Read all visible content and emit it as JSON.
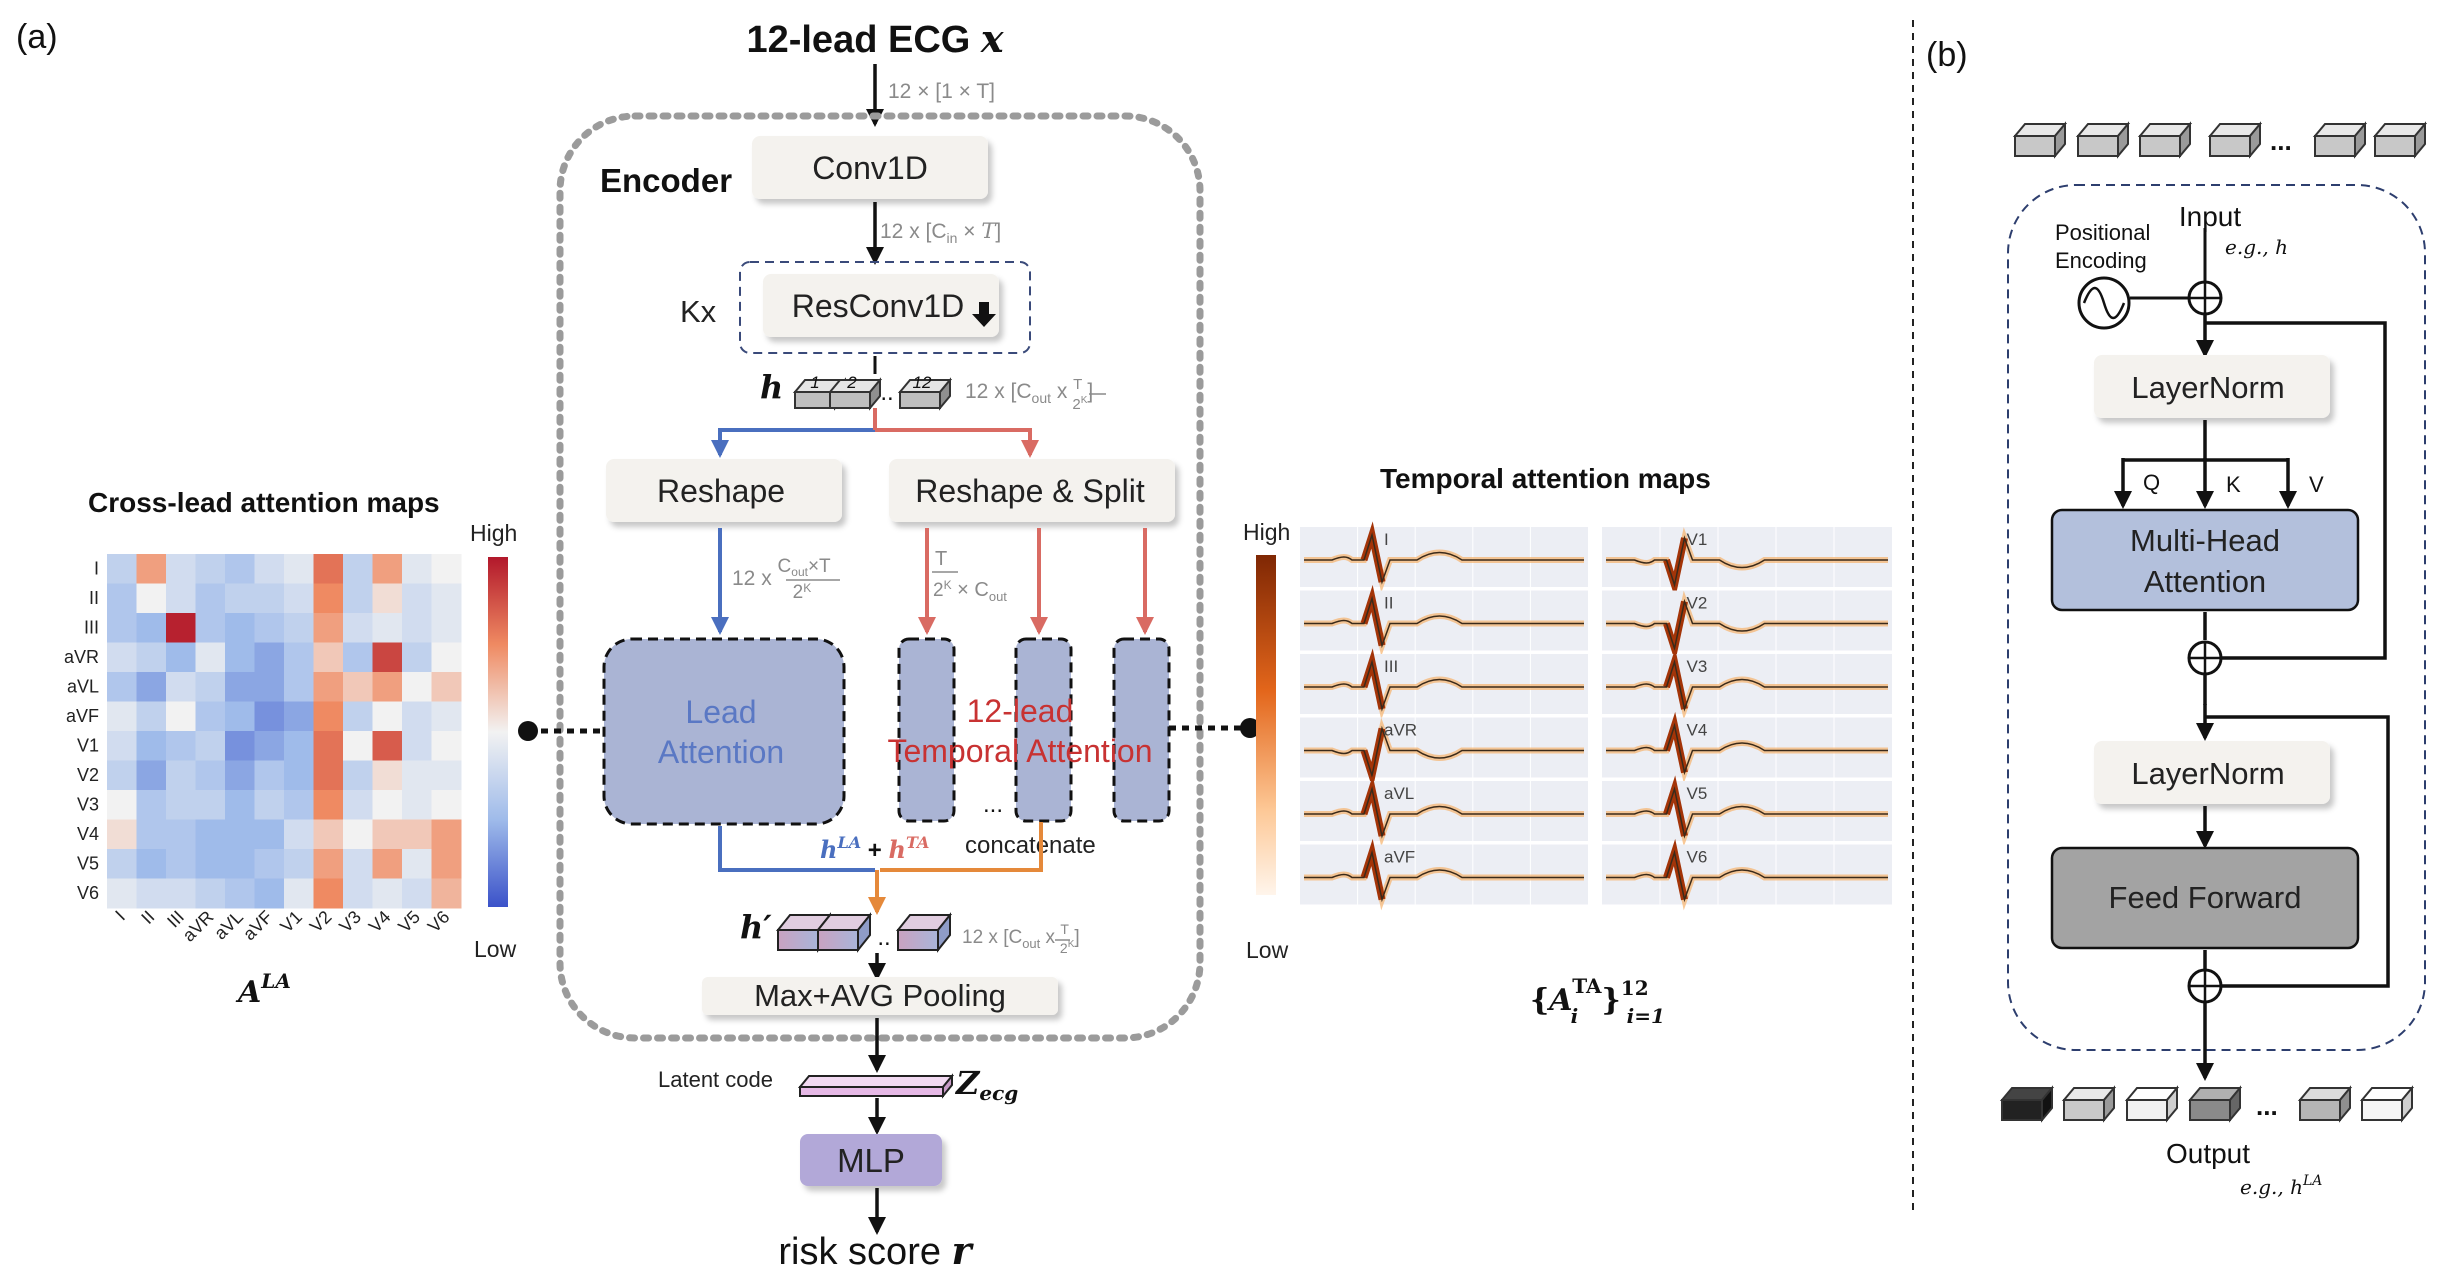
{
  "panel_labels": {
    "a": "(a)",
    "b": "(b)"
  },
  "top": {
    "title": "12-lead ECG",
    "title_var": "x",
    "input_shape": "12 × [1 × T]"
  },
  "encoder": {
    "label": "Encoder",
    "conv1d": "Conv1D",
    "conv_shape": "12 x [Cin × T]",
    "kx": "Kx",
    "resconv": "ResConv1D",
    "h_label": "h",
    "h_tokens": [
      "1",
      "2",
      "..",
      "12"
    ],
    "h_shape": "12 x [Cout x T/2K]",
    "reshape": "Reshape",
    "reshape_split": "Reshape & Split",
    "reshape_shape": "12 x Cout×T/2K",
    "split_shape": "T/2K × Cout",
    "lead_attention": [
      "Lead",
      "Attention"
    ],
    "temporal_attention": [
      "12-lead",
      "Temporal Attention"
    ],
    "dots": "...",
    "concatenate": "concatenate",
    "sum_la": "hLA",
    "sum_plus": "+",
    "sum_ta": "hTA",
    "hprime": "h′",
    "hprime_shape": "12 x [Cout x T/2K]",
    "pooling": "Max+AVG Pooling"
  },
  "bottom": {
    "latent_label": "Latent code",
    "z": "Zecg",
    "mlp": "MLP",
    "risk": "risk score",
    "risk_var": "r"
  },
  "cross_lead": {
    "title": "Cross-lead attention maps",
    "high": "High",
    "low": "Low",
    "caption": "ALA",
    "leads": [
      "I",
      "II",
      "III",
      "aVR",
      "aVL",
      "aVF",
      "V1",
      "V2",
      "V3",
      "V4",
      "V5",
      "V6"
    ],
    "matrix": [
      [
        0.35,
        0.7,
        0.4,
        0.35,
        0.3,
        0.4,
        0.45,
        0.8,
        0.35,
        0.7,
        0.45,
        0.5
      ],
      [
        0.3,
        0.5,
        0.4,
        0.3,
        0.35,
        0.35,
        0.4,
        0.75,
        0.35,
        0.55,
        0.4,
        0.45
      ],
      [
        0.3,
        0.25,
        0.98,
        0.3,
        0.25,
        0.3,
        0.35,
        0.7,
        0.4,
        0.45,
        0.4,
        0.45
      ],
      [
        0.4,
        0.35,
        0.25,
        0.45,
        0.25,
        0.2,
        0.3,
        0.6,
        0.3,
        0.9,
        0.35,
        0.5
      ],
      [
        0.3,
        0.2,
        0.4,
        0.35,
        0.2,
        0.2,
        0.3,
        0.7,
        0.6,
        0.7,
        0.5,
        0.6
      ],
      [
        0.45,
        0.35,
        0.5,
        0.3,
        0.25,
        0.15,
        0.2,
        0.75,
        0.35,
        0.5,
        0.4,
        0.45
      ],
      [
        0.4,
        0.25,
        0.3,
        0.35,
        0.15,
        0.2,
        0.25,
        0.8,
        0.5,
        0.85,
        0.4,
        0.5
      ],
      [
        0.35,
        0.2,
        0.35,
        0.3,
        0.2,
        0.3,
        0.25,
        0.8,
        0.35,
        0.55,
        0.45,
        0.45
      ],
      [
        0.5,
        0.3,
        0.35,
        0.35,
        0.25,
        0.35,
        0.3,
        0.75,
        0.4,
        0.5,
        0.45,
        0.5
      ],
      [
        0.55,
        0.3,
        0.3,
        0.25,
        0.25,
        0.25,
        0.4,
        0.6,
        0.5,
        0.6,
        0.6,
        0.7
      ],
      [
        0.35,
        0.25,
        0.3,
        0.25,
        0.25,
        0.3,
        0.35,
        0.7,
        0.4,
        0.7,
        0.45,
        0.7
      ],
      [
        0.45,
        0.4,
        0.4,
        0.35,
        0.3,
        0.25,
        0.45,
        0.75,
        0.4,
        0.45,
        0.4,
        0.65
      ]
    ]
  },
  "temporal": {
    "title": "Temporal attention maps",
    "high": "High",
    "low": "Low",
    "caption": "{ATAi}12i=1",
    "left_leads": [
      "I",
      "II",
      "III",
      "aVR",
      "aVL",
      "aVF"
    ],
    "right_leads": [
      "V1",
      "V2",
      "V3",
      "V4",
      "V5",
      "V6"
    ]
  },
  "transformer": {
    "tokens_top": "...",
    "pos_enc": [
      "Positional",
      "Encoding"
    ],
    "input": "Input",
    "input_eg": "e.g., h",
    "layernorm": "LayerNorm",
    "q": "Q",
    "k": "K",
    "v": "V",
    "mha": [
      "Multi-Head",
      "Attention"
    ],
    "feedforward": "Feed Forward",
    "tokens_bottom": "...",
    "output": "Output",
    "output_eg": "e.g., hLA"
  },
  "colors": {
    "blue_arrow": "#4a6fbf",
    "red_arrow": "#d96b63",
    "orange_arrow": "#e5893a",
    "attention_box": "#aab4d4",
    "mha_box": "#b3c0dc",
    "ff_box": "#a3a3a3",
    "mlp_box": "#b2a8d8",
    "latent_bar": "#e6b9e6",
    "text_red": "#c83232",
    "text_blue": "#5a78c4"
  }
}
